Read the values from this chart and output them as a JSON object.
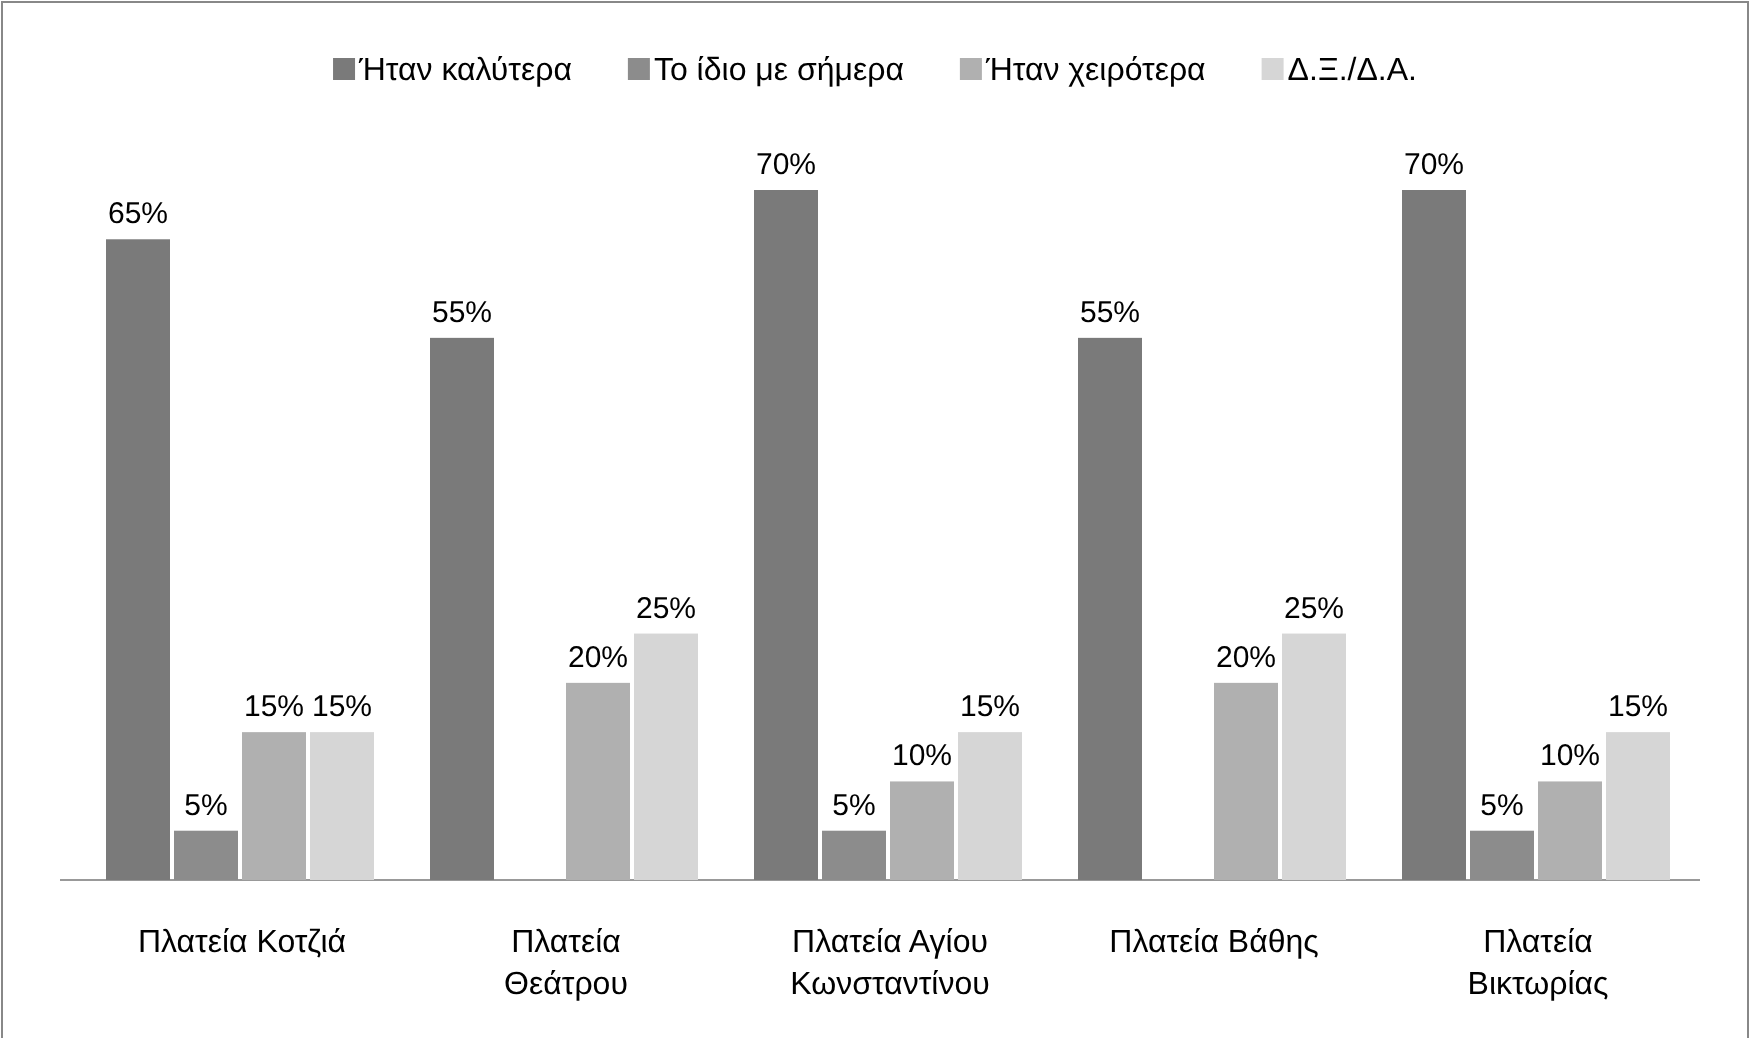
{
  "chart_data": {
    "type": "bar",
    "categories": [
      "Πλατεία Κοτζιά",
      "Πλατεία Θεάτρου",
      "Πλατεία Αγίου Κωνσταντίνου",
      "Πλατεία Βάθης",
      "Πλατεία Βικτωρίας"
    ],
    "series": [
      {
        "name": "Ήταν καλύτερα",
        "color": "#7a7a7a",
        "values": [
          65,
          55,
          70,
          55,
          70
        ],
        "value_labels": [
          "65%",
          "55%",
          "70%",
          "55%",
          "70%"
        ]
      },
      {
        "name": "Το ίδιο με σήμερα",
        "color": "#8c8c8c",
        "values": [
          5,
          null,
          5,
          null,
          5
        ],
        "value_labels": [
          "5%",
          null,
          "5%",
          null,
          "5%"
        ]
      },
      {
        "name": "Ήταν χειρότερα",
        "color": "#b0b0b0",
        "values": [
          15,
          20,
          10,
          20,
          10
        ],
        "value_labels": [
          "15%",
          "20%",
          "10%",
          "20%",
          "10%"
        ]
      },
      {
        "name": "Δ.Ξ./Δ.Α.",
        "color": "#d6d6d6",
        "values": [
          15,
          25,
          15,
          25,
          15
        ],
        "value_labels": [
          "15%",
          "25%",
          "15%",
          "25%",
          "15%"
        ]
      }
    ],
    "legend": "top"
  }
}
